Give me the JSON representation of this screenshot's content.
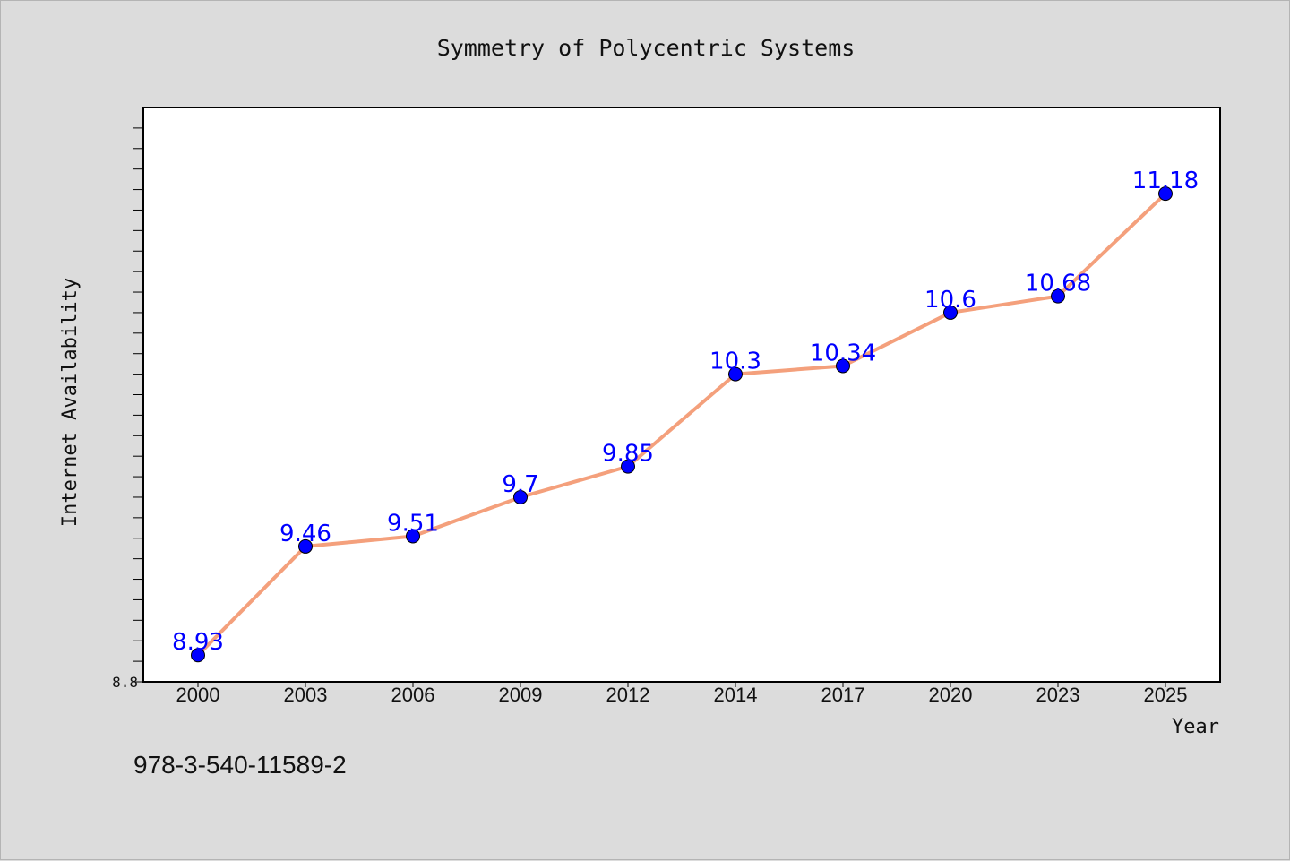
{
  "chart_data": {
    "type": "line",
    "title": "Symmetry of Polycentric Systems",
    "xlabel": "Year",
    "ylabel": "Internet Availability",
    "categories": [
      "2000",
      "2003",
      "2006",
      "2009",
      "2012",
      "2014",
      "2017",
      "2020",
      "2023",
      "2025"
    ],
    "values": [
      8.93,
      9.46,
      9.51,
      9.7,
      9.85,
      10.3,
      10.34,
      10.6,
      10.68,
      11.18
    ],
    "data_labels": [
      "8.93",
      "9.46",
      "9.51",
      "9.7",
      "9.85",
      "10.3",
      "10.34",
      "10.6",
      "10.68",
      "11.18"
    ],
    "y_tick_labels": [
      "8.8"
    ],
    "ylim": [
      8.8,
      11.6
    ],
    "y_minor_step": 0.1,
    "grid": false,
    "legend": "none",
    "line_color": "#f4a07c",
    "marker_color": "#0000ff",
    "label_color": "#0000ff"
  },
  "annotation": "978-3-540-11589-2"
}
